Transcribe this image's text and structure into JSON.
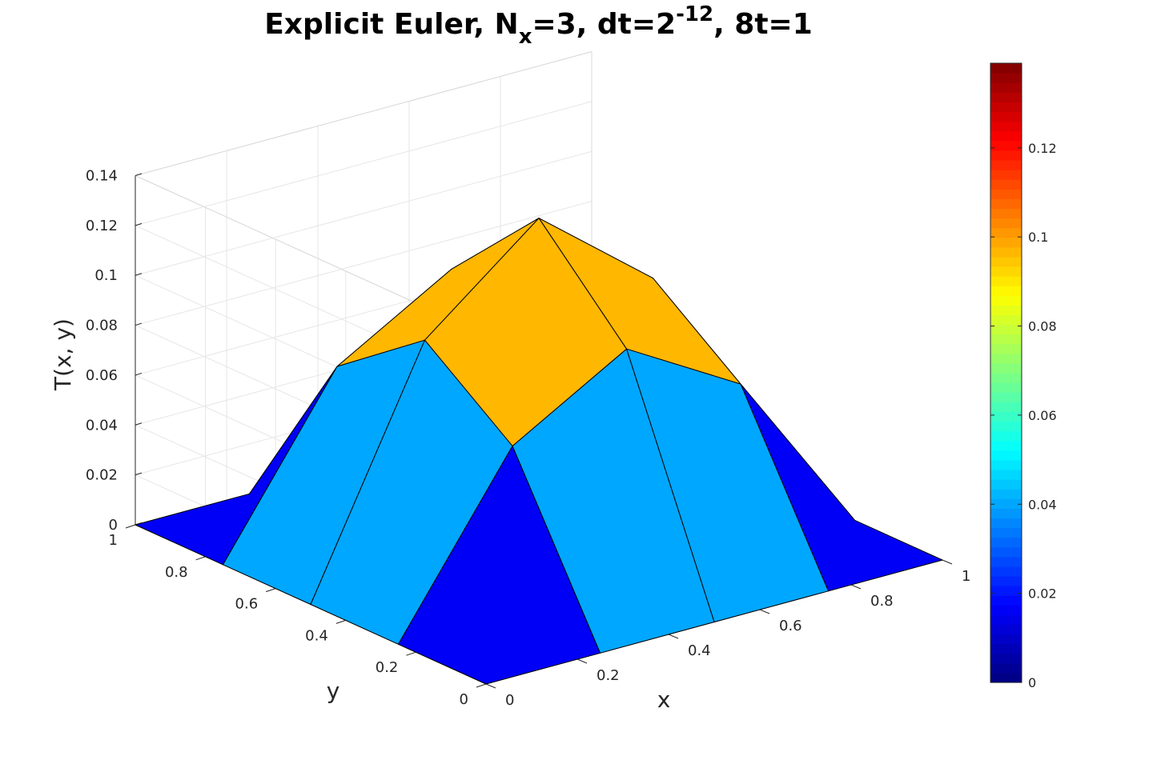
{
  "chart_data": {
    "type": "surface",
    "title": {
      "prefix": "Explicit Euler, N",
      "subscript": "x",
      "middle": "=3, dt=2",
      "superscript": "-12",
      "suffix": ", 8t=1"
    },
    "xlabel": "x",
    "ylabel": "y",
    "zlabel": "T(x, y)",
    "x": [
      0,
      0.25,
      0.5,
      0.75,
      1
    ],
    "y": [
      0,
      0.25,
      0.5,
      0.75,
      1
    ],
    "z": [
      [
        0,
        0,
        0,
        0,
        0
      ],
      [
        0,
        0.067,
        0.0935,
        0.067,
        0
      ],
      [
        0,
        0.0935,
        0.13,
        0.0935,
        0
      ],
      [
        0,
        0.067,
        0.0935,
        0.067,
        0
      ],
      [
        0,
        0,
        0,
        0,
        0
      ]
    ],
    "xlim": [
      0,
      1
    ],
    "ylim": [
      0,
      1
    ],
    "zlim": [
      0,
      0.14
    ],
    "x_ticks": [
      "0",
      "0.2",
      "0.4",
      "0.6",
      "0.8",
      "1"
    ],
    "y_ticks": [
      "0",
      "0.2",
      "0.4",
      "0.6",
      "0.8",
      "1"
    ],
    "z_ticks": [
      "0",
      "0.02",
      "0.04",
      "0.06",
      "0.08",
      "0.1",
      "0.12",
      "0.14"
    ],
    "colormap": "jet",
    "clim": [
      0,
      0.139
    ],
    "colorbar_ticks": [
      "0",
      "0.02",
      "0.04",
      "0.06",
      "0.08",
      "0.1",
      "0.12"
    ],
    "grid": true,
    "edge_color": "#000000"
  }
}
